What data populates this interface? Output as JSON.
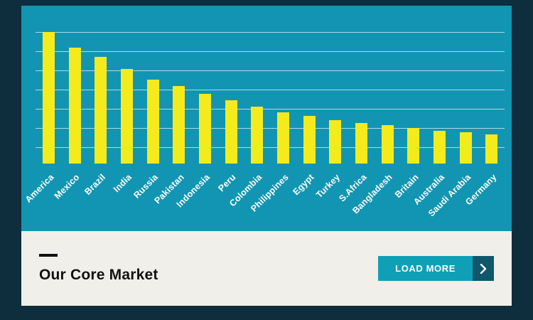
{
  "chart_data": {
    "type": "bar",
    "title": "",
    "xlabel": "",
    "ylabel": "",
    "categories": [
      "America",
      "Mexico",
      "Brazil",
      "India",
      "Russia",
      "Pakistan",
      "Indonesia",
      "Peru",
      "Colombia",
      "Philippines",
      "Egypt",
      "Turkey",
      "S.Africa",
      "Bangladesh",
      "Britain",
      "Australia",
      "Saudi Arabia",
      "Germany"
    ],
    "values": [
      100,
      88,
      81,
      72,
      64,
      59,
      53,
      48,
      43,
      39,
      36,
      33,
      31,
      29,
      27,
      25,
      24,
      22
    ],
    "ylim": [
      0,
      100
    ],
    "grid": true,
    "gridline_count": 7,
    "legend": "none",
    "bar_color": "#f5eb1c",
    "background_color": "#1295b2",
    "label_color": "#ffffff"
  },
  "footer": {
    "title": "Our Core Market",
    "load_more_label": "LOAD MORE"
  },
  "colors": {
    "frame": "#0e2e3e",
    "chart_panel": "#1295b2",
    "bar": "#f5eb1c",
    "footer_background": "#f1efe9",
    "button": "#0fa0b6",
    "button_arrow_background": "#11576b",
    "title_text": "#111111"
  }
}
